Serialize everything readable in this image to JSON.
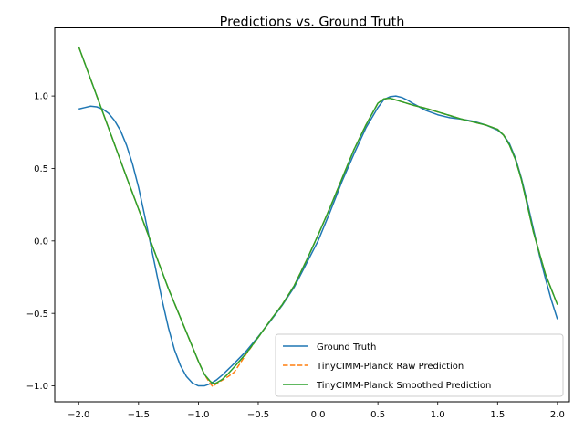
{
  "chart_data": {
    "type": "line",
    "title": "Predictions vs. Ground Truth",
    "xlabel": "",
    "ylabel": "",
    "xlim": [
      -2.2,
      2.1
    ],
    "ylim": [
      -1.11,
      1.47
    ],
    "grid": false,
    "legend_position": "lower right",
    "x_ticks": [
      -2.0,
      -1.5,
      -1.0,
      -0.5,
      0.0,
      0.5,
      1.0,
      1.5,
      2.0
    ],
    "x_tick_labels": [
      "−2.0",
      "−1.5",
      "−1.0",
      "−0.5",
      "0.0",
      "0.5",
      "1.0",
      "1.5",
      "2.0"
    ],
    "y_ticks": [
      -1.0,
      -0.5,
      0.0,
      0.5,
      1.0
    ],
    "y_tick_labels": [
      "−1.0",
      "−0.5",
      "0.0",
      "0.5",
      "1.0"
    ],
    "series": [
      {
        "name": "Ground Truth",
        "color": "#1f77b4",
        "dash": "solid",
        "x": [
          -2.0,
          -1.95,
          -1.9,
          -1.85,
          -1.8,
          -1.75,
          -1.7,
          -1.65,
          -1.6,
          -1.55,
          -1.5,
          -1.45,
          -1.4,
          -1.35,
          -1.3,
          -1.25,
          -1.2,
          -1.15,
          -1.1,
          -1.05,
          -1.0,
          -0.95,
          -0.9,
          -0.85,
          -0.8,
          -0.75,
          -0.7,
          -0.6,
          -0.5,
          -0.4,
          -0.3,
          -0.2,
          -0.1,
          0.0,
          0.1,
          0.2,
          0.3,
          0.4,
          0.5,
          0.55,
          0.6,
          0.65,
          0.7,
          0.75,
          0.8,
          0.9,
          1.0,
          1.1,
          1.2,
          1.3,
          1.4,
          1.5,
          1.55,
          1.6,
          1.65,
          1.7,
          1.75,
          1.8,
          1.85,
          1.9,
          1.95,
          2.0
        ],
        "y": [
          0.91,
          0.92,
          0.93,
          0.925,
          0.91,
          0.88,
          0.83,
          0.76,
          0.66,
          0.53,
          0.37,
          0.18,
          -0.02,
          -0.22,
          -0.42,
          -0.6,
          -0.75,
          -0.86,
          -0.935,
          -0.98,
          -1.0,
          -1.0,
          -0.985,
          -0.96,
          -0.925,
          -0.885,
          -0.845,
          -0.76,
          -0.66,
          -0.555,
          -0.445,
          -0.32,
          -0.16,
          0.0,
          0.2,
          0.41,
          0.6,
          0.78,
          0.92,
          0.975,
          0.995,
          1.0,
          0.99,
          0.97,
          0.945,
          0.9,
          0.87,
          0.85,
          0.84,
          0.825,
          0.8,
          0.765,
          0.73,
          0.67,
          0.57,
          0.43,
          0.26,
          0.08,
          -0.1,
          -0.26,
          -0.41,
          -0.54
        ]
      },
      {
        "name": "TinyCIMM-Planck Raw Prediction",
        "color": "#ff7f0e",
        "dash": "dashed",
        "x": [
          -2.0,
          -1.8,
          -1.6,
          -1.4,
          -1.25,
          -1.15,
          -1.05,
          -1.0,
          -0.95,
          -0.9,
          -0.88,
          -0.85,
          -0.8,
          -0.75,
          -0.7,
          -0.6,
          -0.5,
          -0.4,
          -0.3,
          -0.2,
          -0.1,
          0.0,
          0.1,
          0.2,
          0.3,
          0.4,
          0.5,
          0.55,
          0.6,
          0.7,
          0.8,
          0.9,
          1.0,
          1.1,
          1.2,
          1.3,
          1.4,
          1.5,
          1.55,
          1.6,
          1.65,
          1.7,
          1.75,
          1.8,
          1.9,
          2.0
        ],
        "y": [
          1.34,
          0.89,
          0.44,
          0.0,
          -0.33,
          -0.53,
          -0.73,
          -0.83,
          -0.92,
          -0.985,
          -1.005,
          -0.985,
          -0.96,
          -0.935,
          -0.905,
          -0.78,
          -0.665,
          -0.55,
          -0.44,
          -0.31,
          -0.14,
          0.04,
          0.23,
          0.43,
          0.63,
          0.8,
          0.95,
          0.98,
          0.985,
          0.96,
          0.935,
          0.915,
          0.89,
          0.865,
          0.84,
          0.82,
          0.8,
          0.77,
          0.73,
          0.66,
          0.56,
          0.42,
          0.24,
          0.06,
          -0.23,
          -0.44
        ]
      },
      {
        "name": "TinyCIMM-Planck Smoothed Prediction",
        "color": "#2ca02c",
        "dash": "solid",
        "x": [
          -2.0,
          -1.8,
          -1.6,
          -1.4,
          -1.25,
          -1.15,
          -1.05,
          -1.0,
          -0.95,
          -0.9,
          -0.87,
          -0.85,
          -0.8,
          -0.75,
          -0.7,
          -0.6,
          -0.5,
          -0.4,
          -0.3,
          -0.2,
          -0.1,
          0.0,
          0.1,
          0.2,
          0.3,
          0.4,
          0.5,
          0.55,
          0.6,
          0.7,
          0.8,
          0.9,
          1.0,
          1.1,
          1.2,
          1.3,
          1.4,
          1.5,
          1.55,
          1.6,
          1.65,
          1.7,
          1.75,
          1.8,
          1.9,
          2.0
        ],
        "y": [
          1.34,
          0.89,
          0.44,
          0.0,
          -0.33,
          -0.53,
          -0.73,
          -0.83,
          -0.92,
          -0.97,
          -0.985,
          -0.98,
          -0.955,
          -0.915,
          -0.87,
          -0.775,
          -0.665,
          -0.55,
          -0.44,
          -0.31,
          -0.14,
          0.04,
          0.23,
          0.43,
          0.63,
          0.8,
          0.95,
          0.98,
          0.985,
          0.96,
          0.935,
          0.915,
          0.89,
          0.865,
          0.84,
          0.82,
          0.8,
          0.77,
          0.73,
          0.66,
          0.56,
          0.42,
          0.24,
          0.06,
          -0.23,
          -0.44
        ]
      }
    ]
  }
}
